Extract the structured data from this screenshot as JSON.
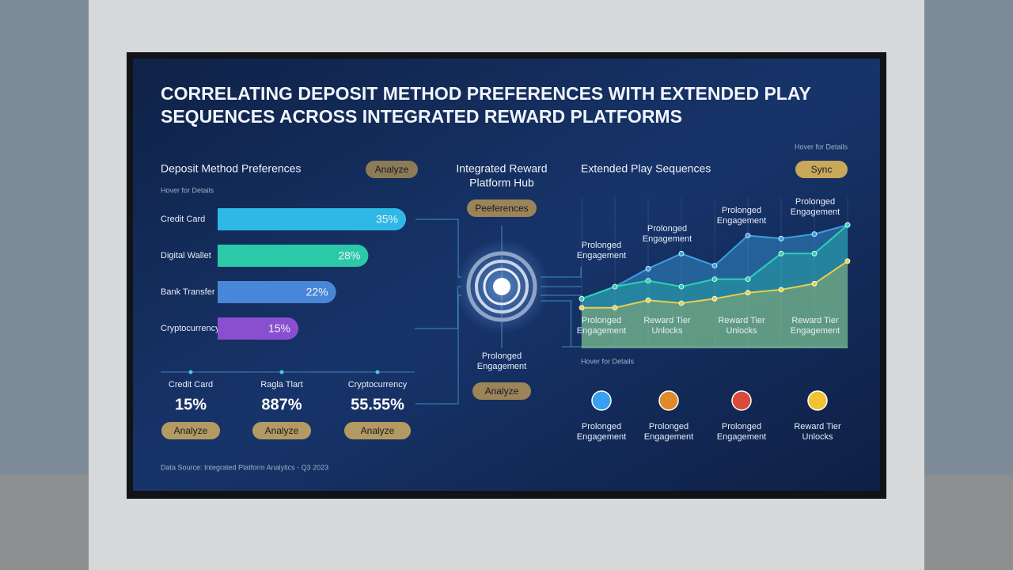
{
  "title_lines": [
    "CORRELATING DEPOSIT METHOD PREFERENCES WITH EXTENDED PLAY",
    "SEQUENCES ACROSS INTEGRATED REWARD PLATFORMS"
  ],
  "chart_data": [
    {
      "type": "bar",
      "orientation": "horizontal",
      "title": "Deposit Method Preferences",
      "categories": [
        "Credit Card",
        "Digital Wallet",
        "Bank Transfer",
        "Cryptocurrency"
      ],
      "values": [
        35,
        28,
        22,
        15
      ],
      "value_labels": [
        "35%",
        "28%",
        "22%",
        "15%"
      ],
      "colors": [
        "#2fb8e6",
        "#2cc9a8",
        "#4a86d8",
        "#8a4fd0"
      ]
    },
    {
      "type": "line",
      "title": "Extended Play Sequences",
      "x": [
        0,
        1,
        2,
        3,
        4,
        5,
        6,
        7,
        8
      ],
      "xlim": [
        0,
        8
      ],
      "ylim": [
        0,
        100
      ],
      "grid": true,
      "series": [
        {
          "color": "#3aa0e0",
          "values": [
            33,
            41,
            53,
            63,
            55,
            75,
            73,
            76,
            82
          ]
        },
        {
          "color": "#2ad3b0",
          "values": [
            33,
            41,
            45,
            41,
            46,
            46,
            63,
            63,
            82
          ]
        },
        {
          "color": "#e8d04a",
          "values": [
            27,
            27,
            32,
            30,
            33,
            37,
            39,
            43,
            58
          ]
        }
      ],
      "annotations": [
        [
          "Prolonged",
          "Engagement"
        ],
        [
          "Prolonged",
          "Engagement"
        ],
        [
          "Prolonged",
          "Engagement"
        ],
        [
          "Prolonged",
          "Engagement"
        ],
        [
          "Prolonged",
          "Engagement"
        ],
        [
          "Reward Tier",
          "Unlocks"
        ],
        [
          "Reward Tier",
          "Unlocks"
        ],
        [
          "Reward Tier",
          "Engagement"
        ]
      ]
    }
  ],
  "deposit_panel": {
    "hover": "Hover for Details",
    "button": "Analyze"
  },
  "stats": [
    {
      "label": "Credit Card",
      "value": "15%",
      "button": "Analyze"
    },
    {
      "label": "Ragla Tlart",
      "value": "887%",
      "button": "Analyze"
    },
    {
      "label": "Cryptocurrency",
      "value": "55.55%",
      "button": "Analyze"
    }
  ],
  "hub": {
    "title_lines": [
      "Integrated Reward",
      "Platform Hub"
    ],
    "button_top": "Peeferences",
    "caption_lines": [
      "Prolonged",
      "Engagement"
    ],
    "button_bottom": "Analyze"
  },
  "line_panel": {
    "hover_top": "Hover for Details",
    "button": "Sync",
    "hover_bottom": "Hover for Details"
  },
  "icons": [
    [
      "Prolonged",
      "Engagement"
    ],
    [
      "Prolonged",
      "Engagement"
    ],
    [
      "Prolonged",
      "Engagement"
    ],
    [
      "Reward Tier",
      "Unlocks"
    ]
  ],
  "source": "Data Source: Integrated Platform Analytics - Q3 2023"
}
